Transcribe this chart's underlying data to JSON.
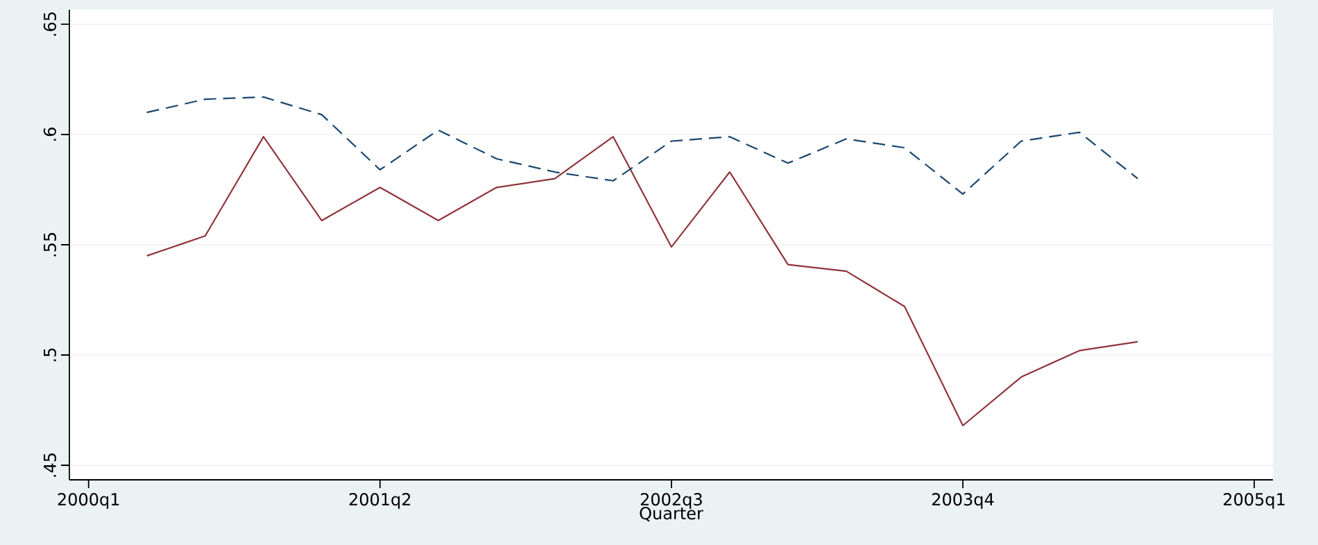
{
  "chart_data": {
    "type": "line",
    "xlabel": "Quarter",
    "categories": [
      "2000q1",
      null,
      null,
      null,
      null,
      "2001q2",
      null,
      null,
      null,
      null,
      "2002q3",
      null,
      null,
      null,
      null,
      "2003q4",
      null,
      null,
      null,
      null,
      "2005q1"
    ],
    "series": [
      {
        "color": "#90353b",
        "line_style": "solid",
        "values": [
          null,
          0.545,
          0.554,
          0.599,
          0.561,
          0.576,
          0.561,
          0.576,
          0.58,
          0.599,
          0.549,
          0.583,
          0.541,
          0.538,
          0.522,
          0.468,
          0.49,
          0.502,
          0.506,
          null,
          null
        ]
      },
      {
        "color": "#1a476f",
        "line_style": "dashed",
        "values": [
          null,
          0.61,
          0.616,
          0.617,
          0.609,
          0.584,
          0.602,
          0.589,
          0.583,
          0.579,
          0.597,
          0.599,
          0.587,
          0.598,
          0.594,
          0.573,
          0.597,
          0.601,
          0.58,
          null,
          null
        ]
      }
    ],
    "ylim": [
      0.4434,
      0.6566
    ],
    "yticks": [
      {
        "value": 0.45,
        "label": ".45"
      },
      {
        "value": 0.5,
        "label": ".5"
      },
      {
        "value": 0.55,
        "label": ".55"
      },
      {
        "value": 0.6,
        "label": ".6"
      },
      {
        "value": 0.65,
        "label": ".65"
      }
    ],
    "grid": "y",
    "legend": false
  }
}
